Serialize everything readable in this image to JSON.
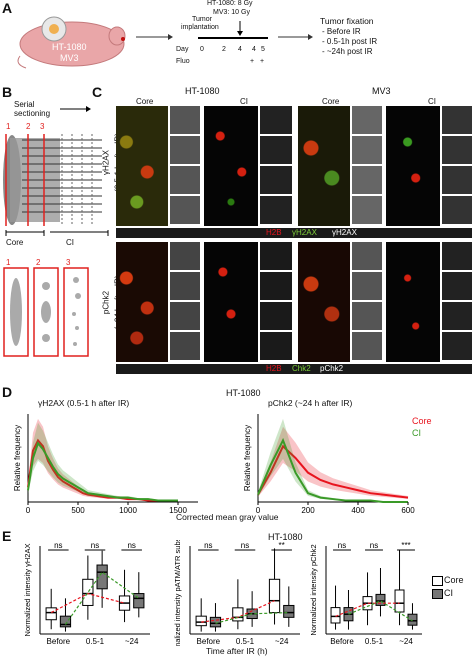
{
  "panel_labels": {
    "a": "A",
    "b": "B",
    "c": "C",
    "d": "D",
    "e": "E"
  },
  "panel_a": {
    "mouse_label_1": "HT-1080",
    "mouse_label_2": "MV3",
    "dose_ht": "HT-1080: 8 Gy",
    "dose_mv": "MV3: 10 Gy",
    "tumor_impl": "Tumor",
    "tumor_impl_2": "implantation",
    "day_label": "Day",
    "days": [
      "0",
      "2",
      "4",
      "4",
      "5"
    ],
    "fluo_label": "Fluo",
    "fluo_marks": [
      "+",
      "+"
    ],
    "fixation_title": "Tumor fixation",
    "fixation_items": [
      "- Before IR",
      "- 0.5-1h post IR",
      "- ~24h post IR"
    ]
  },
  "panel_b": {
    "title": "Serial",
    "title2": "sectioning",
    "numbers": [
      "1",
      "2",
      "3"
    ],
    "core": "Core",
    "ci": "CI"
  },
  "panel_c": {
    "ht": "HT-1080",
    "mv": "MV3",
    "core": "Core",
    "ci": "CI",
    "row1_label": "γH2AX",
    "row1_sub": "(0.5-1 h after IR)",
    "row2_label": "pChk2",
    "row2_sub": "(~24 h after IR)",
    "legend1": [
      "H2B",
      "γH2AX",
      "γH2AX"
    ],
    "legend2": [
      "H2B",
      "Chk2",
      "pChk2"
    ]
  },
  "panel_d_header": "HT-1080",
  "panel_d_xlabel": "Corrected mean gray value",
  "panel_e_header": "HT-1080",
  "panel_e_xlabel": "Time after IR (h)",
  "colors": {
    "core": "#e8141e",
    "ci": "#3a9a28",
    "h2b": "#e8141e",
    "green": "#7fcf3a"
  },
  "chart_data": [
    {
      "type": "area",
      "title": "γH2AX (0.5-1 h after IR)",
      "ylabel": "Relative frequency",
      "x_ticks": [
        "0",
        "500",
        "1000",
        "1500"
      ],
      "xlim": [
        0,
        1700
      ],
      "series": [
        {
          "name": "Core",
          "x": [
            0,
            50,
            100,
            150,
            200,
            250,
            300,
            350,
            400,
            450,
            500,
            550,
            600,
            700,
            800,
            900,
            1000,
            1100,
            1200,
            1300,
            1400,
            1500
          ],
          "y": [
            0.1,
            0.35,
            0.42,
            0.38,
            0.28,
            0.22,
            0.17,
            0.14,
            0.12,
            0.1,
            0.08,
            0.06,
            0.05,
            0.04,
            0.03,
            0.03,
            0.02,
            0.02,
            0.01,
            0.01,
            0.01,
            0.01
          ]
        },
        {
          "name": "CI",
          "x": [
            0,
            50,
            100,
            150,
            200,
            250,
            300,
            350,
            400,
            450,
            500,
            550,
            600,
            700,
            800,
            900,
            1000,
            1100,
            1200,
            1300,
            1400,
            1500
          ],
          "y": [
            0.08,
            0.3,
            0.4,
            0.36,
            0.3,
            0.24,
            0.19,
            0.16,
            0.14,
            0.12,
            0.1,
            0.08,
            0.06,
            0.05,
            0.04,
            0.03,
            0.03,
            0.02,
            0.02,
            0.01,
            0.01,
            0.01
          ]
        }
      ]
    },
    {
      "type": "area",
      "title": "pChk2 (~24 h after IR)",
      "ylabel": "Relative frequency",
      "x_ticks": [
        "0",
        "200",
        "400",
        "600"
      ],
      "xlim": [
        0,
        600
      ],
      "series": [
        {
          "name": "Core",
          "x": [
            0,
            50,
            100,
            150,
            200,
            250,
            300,
            350,
            400,
            450,
            500,
            550,
            600
          ],
          "y": [
            0.05,
            0.2,
            0.38,
            0.3,
            0.2,
            0.15,
            0.12,
            0.1,
            0.08,
            0.06,
            0.05,
            0.04,
            0.03
          ]
        },
        {
          "name": "CI",
          "x": [
            0,
            50,
            100,
            150,
            200,
            250,
            300,
            350,
            400,
            450,
            500,
            550,
            600
          ],
          "y": [
            0.05,
            0.25,
            0.42,
            0.2,
            0.06,
            0.03,
            0.02,
            0.01,
            0.01,
            0.01,
            0.0,
            0.0,
            0.0
          ]
        }
      ]
    },
    {
      "type": "box",
      "ylabel": "Normalized intensity γH2AX",
      "categories": [
        "Before",
        "0.5-1",
        "~24"
      ],
      "significance": [
        "ns",
        "ns",
        "ns"
      ],
      "series": [
        {
          "name": "Core",
          "median": [
            90,
            170,
            130
          ],
          "q1": [
            60,
            120,
            100
          ],
          "q3": [
            110,
            230,
            160
          ],
          "min": [
            20,
            60,
            50
          ],
          "max": [
            190,
            330,
            270
          ]
        },
        {
          "name": "CI",
          "median": [
            40,
            260,
            150
          ],
          "q1": [
            30,
            190,
            110
          ],
          "q3": [
            75,
            290,
            170
          ],
          "min": [
            10,
            110,
            70
          ],
          "max": [
            150,
            350,
            260
          ]
        }
      ]
    },
    {
      "type": "box",
      "ylabel": "Normalized intensity pATM/ATR substrates",
      "categories": [
        "Before",
        "0.5-1",
        "~24"
      ],
      "significance": [
        "ns",
        "ns",
        "**"
      ],
      "series": [
        {
          "name": "Core",
          "median": [
            50,
            70,
            140
          ],
          "q1": [
            35,
            55,
            90
          ],
          "q3": [
            75,
            110,
            230
          ],
          "min": [
            10,
            20,
            40
          ],
          "max": [
            150,
            230,
            360
          ]
        },
        {
          "name": "CI",
          "median": [
            45,
            85,
            90
          ],
          "q1": [
            30,
            65,
            70
          ],
          "q3": [
            70,
            105,
            120
          ],
          "min": [
            10,
            30,
            30
          ],
          "max": [
            130,
            180,
            200
          ]
        }
      ]
    },
    {
      "type": "box",
      "ylabel": "Normalized intensity pChk2",
      "categories": [
        "Before",
        "0.5-1",
        "~24"
      ],
      "significance": [
        "ns",
        "ns",
        "***"
      ],
      "series": [
        {
          "name": "Core",
          "median": [
            40,
            70,
            70
          ],
          "q1": [
            25,
            55,
            50
          ],
          "q3": [
            60,
            85,
            100
          ],
          "min": [
            10,
            20,
            20
          ],
          "max": [
            110,
            140,
            190
          ]
        },
        {
          "name": "CI",
          "median": [
            45,
            75,
            30
          ],
          "q1": [
            30,
            65,
            20
          ],
          "q3": [
            60,
            90,
            45
          ],
          "min": [
            10,
            40,
            10
          ],
          "max": [
            100,
            150,
            70
          ]
        }
      ]
    }
  ],
  "legend": {
    "core": "Core",
    "ci": "CI"
  }
}
